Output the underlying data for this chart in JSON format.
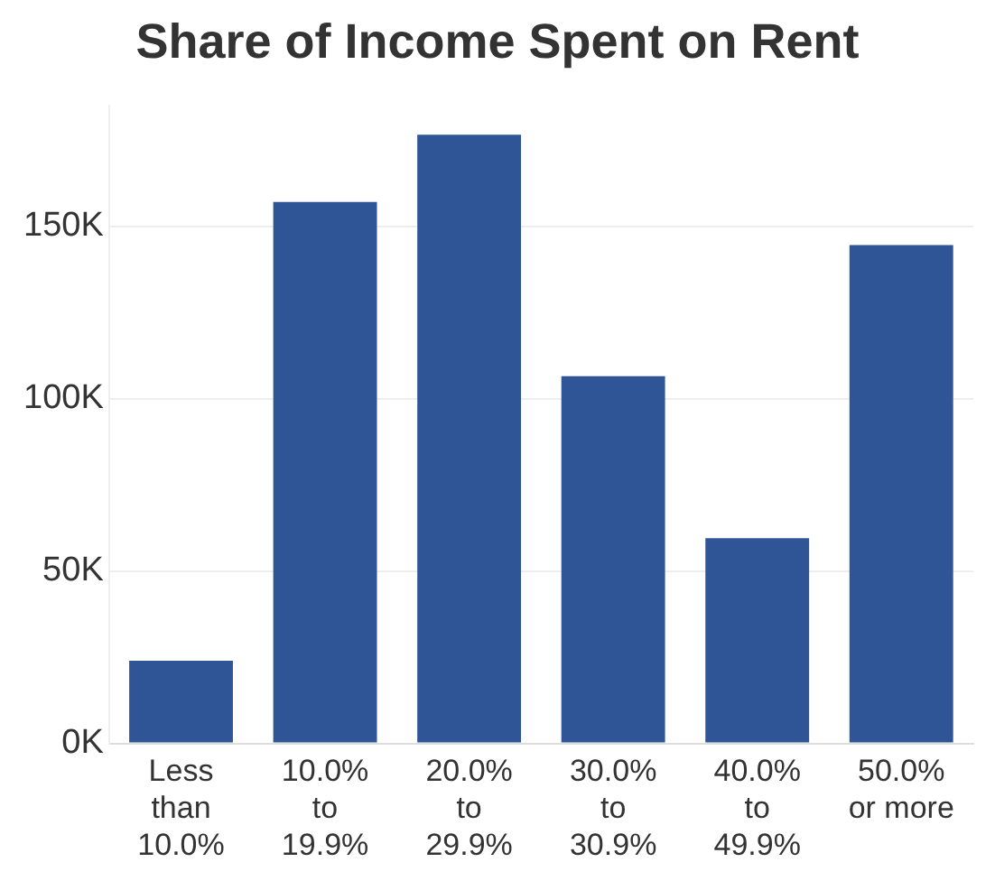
{
  "chart_data": {
    "type": "bar",
    "title": "Share of Income Spent on Rent",
    "categories": [
      "Less than 10.0%",
      "10.0% to 19.9%",
      "20.0% to 29.9%",
      "30.0% to 30.9%",
      "40.0% to 49.9%",
      "50.0% or more"
    ],
    "values": [
      24000,
      157000,
      176500,
      106500,
      59500,
      144500
    ],
    "color": "#2f5597",
    "ylim": [
      0,
      185000
    ],
    "yticks": [
      {
        "value": 0,
        "label": "0K"
      },
      {
        "value": 50000,
        "label": "50K"
      },
      {
        "value": 100000,
        "label": "100K"
      },
      {
        "value": 150000,
        "label": "150K"
      }
    ],
    "grid": "y",
    "legend": false
  }
}
